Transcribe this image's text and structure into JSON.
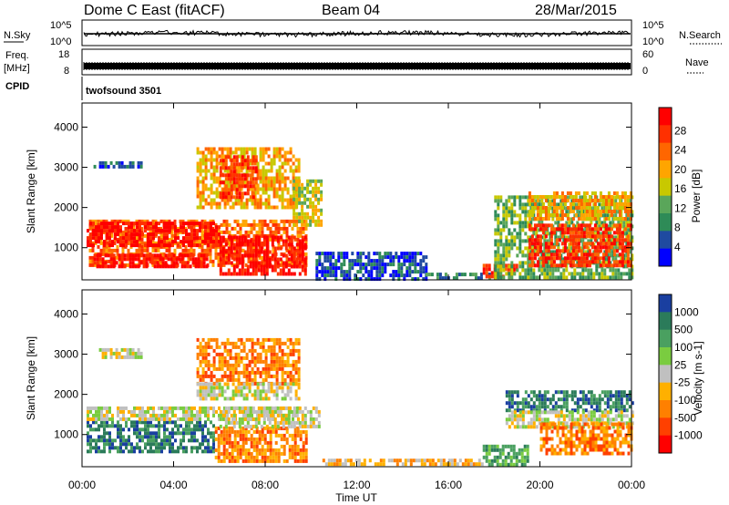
{
  "header": {
    "station": "Dome C East (fitACF)",
    "beam": "Beam 04",
    "date": "28/Mar/2015"
  },
  "cpid_text": "twofsound 3501",
  "top_labels": {
    "nsky": "N.Sky",
    "nsearch": "N.Search",
    "freq_1": "Freq.",
    "freq_2": "[MHz]",
    "nave": "Nave",
    "cpid": "CPID",
    "nsky_top": "10^5",
    "nsky_bottom": "10^0",
    "freq_top": "18",
    "freq_bottom": "8",
    "nave_top": "60",
    "nave_bottom": "0"
  },
  "colors": {
    "power": [
      "#0000ff",
      "#1f4aa0",
      "#2e8b57",
      "#5aa65a",
      "#c8c800",
      "#ffa500",
      "#ff6600",
      "#ff3000",
      "#ff0000"
    ],
    "velocity": [
      "#1a3fa0",
      "#2b7b5a",
      "#4aa060",
      "#7acc40",
      "#c0c0c0",
      "#ffb000",
      "#ff8000",
      "#ff4000",
      "#ff0000"
    ]
  },
  "chart_data": [
    {
      "type": "heatmap",
      "name": "power",
      "xlabel": "",
      "ylabel": "Slant Range [km]",
      "colorbar_label": "Power [dB]",
      "colorbar_ticks": [
        "4",
        "8",
        "12",
        "16",
        "20",
        "24",
        "28"
      ],
      "x_ticks": [
        "00:00",
        "04:00",
        "08:00",
        "12:00",
        "16:00",
        "20:00",
        "00:00"
      ],
      "y_ticks": [
        "1000",
        "2000",
        "3000",
        "4000"
      ],
      "xlim": [
        0,
        24
      ],
      "ylim": [
        200,
        4600
      ],
      "regions": [
        {
          "x": [
            0.3,
            9.8
          ],
          "y": [
            550,
            1700
          ],
          "level": 6
        },
        {
          "x": [
            0.2,
            6.0
          ],
          "y": [
            1100,
            1650
          ],
          "level": 8
        },
        {
          "x": [
            0.5,
            5.5
          ],
          "y": [
            550,
            850
          ],
          "level": 8
        },
        {
          "x": [
            6.0,
            9.8
          ],
          "y": [
            380,
            1300
          ],
          "level": 8
        },
        {
          "x": [
            0.5,
            2.6
          ],
          "y": [
            3000,
            3150
          ],
          "level": 1
        },
        {
          "x": [
            5.0,
            9.5
          ],
          "y": [
            2000,
            3500
          ],
          "level": 5
        },
        {
          "x": [
            6.0,
            7.6
          ],
          "y": [
            2300,
            3300
          ],
          "level": 7
        },
        {
          "x": [
            9.2,
            10.4
          ],
          "y": [
            1600,
            2700
          ],
          "level": 4
        },
        {
          "x": [
            10.2,
            15.0
          ],
          "y": [
            250,
            900
          ],
          "level": 1
        },
        {
          "x": [
            15.0,
            18.0
          ],
          "y": [
            250,
            380
          ],
          "level": 2
        },
        {
          "x": [
            17.5,
            19.0
          ],
          "y": [
            250,
            600
          ],
          "level": 7
        },
        {
          "x": [
            18.0,
            24.0
          ],
          "y": [
            300,
            2300
          ],
          "level": 3
        },
        {
          "x": [
            19.5,
            24.0
          ],
          "y": [
            600,
            1600
          ],
          "level": 7
        },
        {
          "x": [
            19.5,
            24.0
          ],
          "y": [
            1700,
            2400
          ],
          "level": 5
        }
      ]
    },
    {
      "type": "heatmap",
      "name": "velocity",
      "xlabel": "Time UT",
      "ylabel": "Slant Range [km]",
      "colorbar_label": "Velocity [m s-1]",
      "colorbar_ticks": [
        "1000",
        "500",
        "100",
        "25",
        "-25",
        "-100",
        "-500",
        "-1000"
      ],
      "x_ticks": [
        "00:00",
        "04:00",
        "08:00",
        "12:00",
        "16:00",
        "20:00",
        "00:00"
      ],
      "y_ticks": [
        "1000",
        "2000",
        "3000",
        "4000"
      ],
      "xlim": [
        0,
        24
      ],
      "ylim": [
        200,
        4600
      ],
      "regions": [
        {
          "x": [
            0.2,
            5.8
          ],
          "y": [
            550,
            1350
          ],
          "level": 1
        },
        {
          "x": [
            0.2,
            9.5
          ],
          "y": [
            1350,
            1700
          ],
          "level": 4
        },
        {
          "x": [
            5.8,
            9.8
          ],
          "y": [
            350,
            1200
          ],
          "level": 6
        },
        {
          "x": [
            6.0,
            10.4
          ],
          "y": [
            1200,
            1700
          ],
          "level": 4
        },
        {
          "x": [
            5.0,
            9.5
          ],
          "y": [
            2300,
            3400
          ],
          "level": 6
        },
        {
          "x": [
            5.0,
            9.5
          ],
          "y": [
            1900,
            2300
          ],
          "level": 4
        },
        {
          "x": [
            0.5,
            2.6
          ],
          "y": [
            2950,
            3150
          ],
          "level": 4
        },
        {
          "x": [
            10.5,
            17.5
          ],
          "y": [
            250,
            400
          ],
          "level": 5
        },
        {
          "x": [
            17.5,
            19.5
          ],
          "y": [
            250,
            750
          ],
          "level": 2
        },
        {
          "x": [
            18.5,
            24.0
          ],
          "y": [
            1600,
            2100
          ],
          "level": 1
        },
        {
          "x": [
            18.5,
            24.0
          ],
          "y": [
            1200,
            1600
          ],
          "level": 4
        },
        {
          "x": [
            20.0,
            24.0
          ],
          "y": [
            500,
            1300
          ],
          "level": 6
        }
      ]
    }
  ]
}
